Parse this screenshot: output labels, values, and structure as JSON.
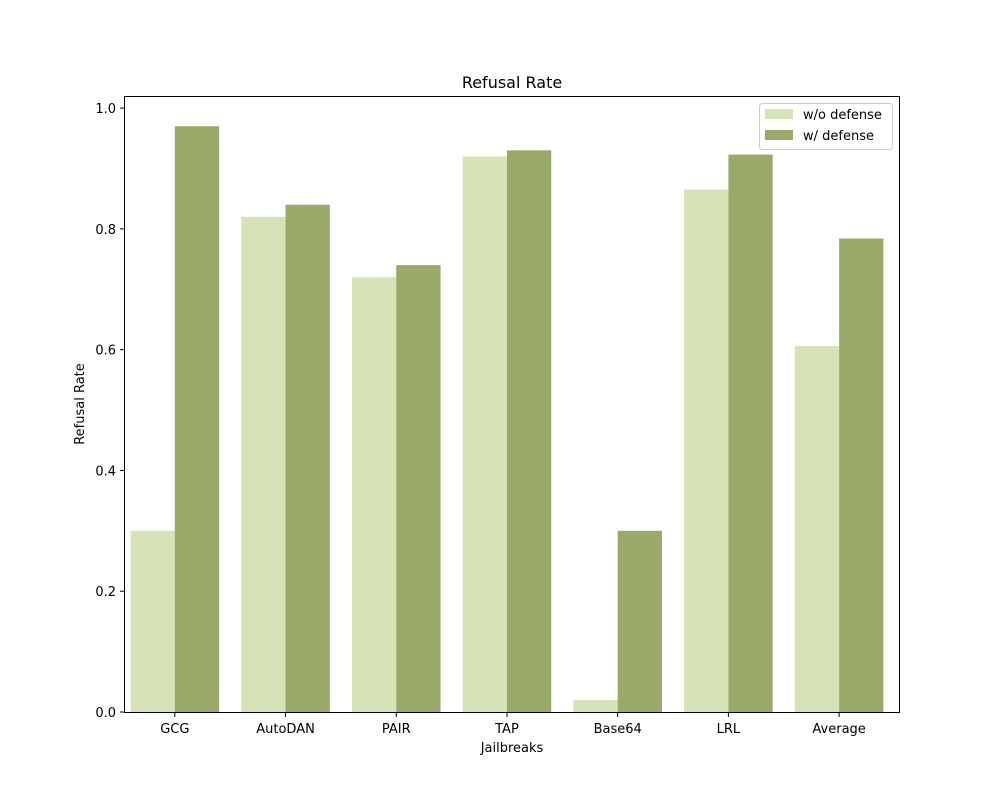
{
  "chart_data": {
    "type": "bar",
    "title": "Refusal Rate",
    "xlabel": "Jailbreaks",
    "ylabel": "Refusal Rate",
    "categories": [
      "GCG",
      "AutoDAN",
      "PAIR",
      "TAP",
      "Base64",
      "LRL",
      "Average"
    ],
    "series": [
      {
        "name": "w/o defense",
        "color": "#d6e3b7",
        "values": [
          0.3,
          0.82,
          0.72,
          0.92,
          0.02,
          0.865,
          0.606
        ]
      },
      {
        "name": "w/ defense",
        "color": "#98a969",
        "values": [
          0.97,
          0.84,
          0.74,
          0.93,
          0.3,
          0.923,
          0.784
        ]
      }
    ],
    "ylim": [
      0.0,
      1.02
    ],
    "yticks": [
      "0.0",
      "0.2",
      "0.4",
      "0.6",
      "0.8",
      "1.0"
    ],
    "grid": false,
    "legend_position": "top-right"
  }
}
